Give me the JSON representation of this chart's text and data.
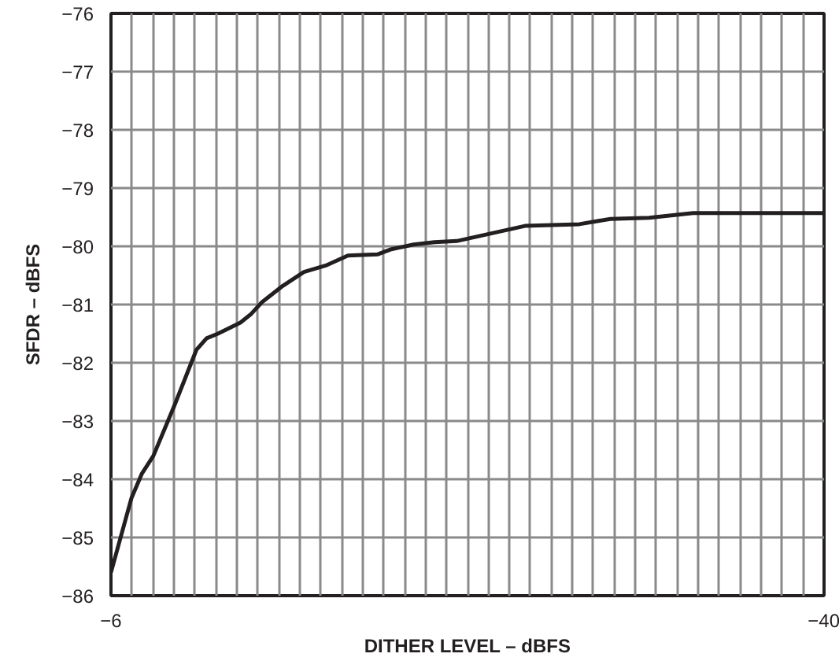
{
  "chart_data": {
    "type": "line",
    "xlabel": "DITHER LEVEL – dBFS",
    "ylabel": "SFDR – dBFS",
    "x": [
      -6.0,
      -6.98,
      -7.48,
      -8.02,
      -9.03,
      -10.07,
      -10.56,
      -11.1,
      -12.17,
      -12.66,
      -13.2,
      -14.19,
      -15.2,
      -16.24,
      -17.3,
      -18.7,
      -19.37,
      -20.43,
      -21.42,
      -22.48,
      -25.74,
      -28.33,
      -29.81,
      -31.66,
      -33.76,
      -40.0
    ],
    "series": [
      {
        "color": "#231f20",
        "values": [
          -85.6,
          -84.32,
          -83.9,
          -83.6,
          -82.73,
          -81.78,
          -81.58,
          -81.5,
          -81.31,
          -81.17,
          -80.96,
          -80.68,
          -80.44,
          -80.33,
          -80.16,
          -80.14,
          -80.05,
          -79.97,
          -79.93,
          -79.91,
          -79.65,
          -79.62,
          -79.53,
          -79.51,
          -79.43,
          -79.43
        ]
      }
    ],
    "xlim": [
      -6,
      -40
    ],
    "xticks": [
      -6,
      {
        "value": -7,
        "label": null
      },
      {
        "value": -8,
        "label": null
      },
      {
        "value": -9,
        "label": null
      },
      {
        "value": -10,
        "label": null
      },
      {
        "value": -11,
        "label": null
      },
      {
        "value": -12,
        "label": null
      },
      {
        "value": -13,
        "label": null
      },
      {
        "value": -14,
        "label": null
      },
      {
        "value": -15,
        "label": null
      },
      {
        "value": -16,
        "label": null
      },
      {
        "value": -17,
        "label": null
      },
      {
        "value": -18,
        "label": null
      },
      {
        "value": -19,
        "label": null
      },
      {
        "value": -20,
        "label": null
      },
      {
        "value": -21,
        "label": null
      },
      {
        "value": -22,
        "label": null
      },
      {
        "value": -23,
        "label": null
      },
      {
        "value": -24,
        "label": null
      },
      {
        "value": -25,
        "label": null
      },
      {
        "value": -26,
        "label": null
      },
      {
        "value": -27,
        "label": null
      },
      {
        "value": -28,
        "label": null
      },
      {
        "value": -29,
        "label": null
      },
      {
        "value": -30,
        "label": null
      },
      {
        "value": -31,
        "label": null
      },
      {
        "value": -32,
        "label": null
      },
      {
        "value": -33,
        "label": null
      },
      {
        "value": -34,
        "label": null
      },
      {
        "value": -35,
        "label": null
      },
      {
        "value": -36,
        "label": null
      },
      {
        "value": -37,
        "label": null
      },
      {
        "value": -38,
        "label": null
      },
      {
        "value": -39,
        "label": null
      },
      -40
    ],
    "ylim": [
      -86,
      -76
    ],
    "yticks": [
      -86,
      -85,
      -84,
      -83,
      -82,
      -81,
      -80,
      -79,
      -78,
      -77,
      -76
    ],
    "grid": true,
    "line_style": "solid"
  }
}
